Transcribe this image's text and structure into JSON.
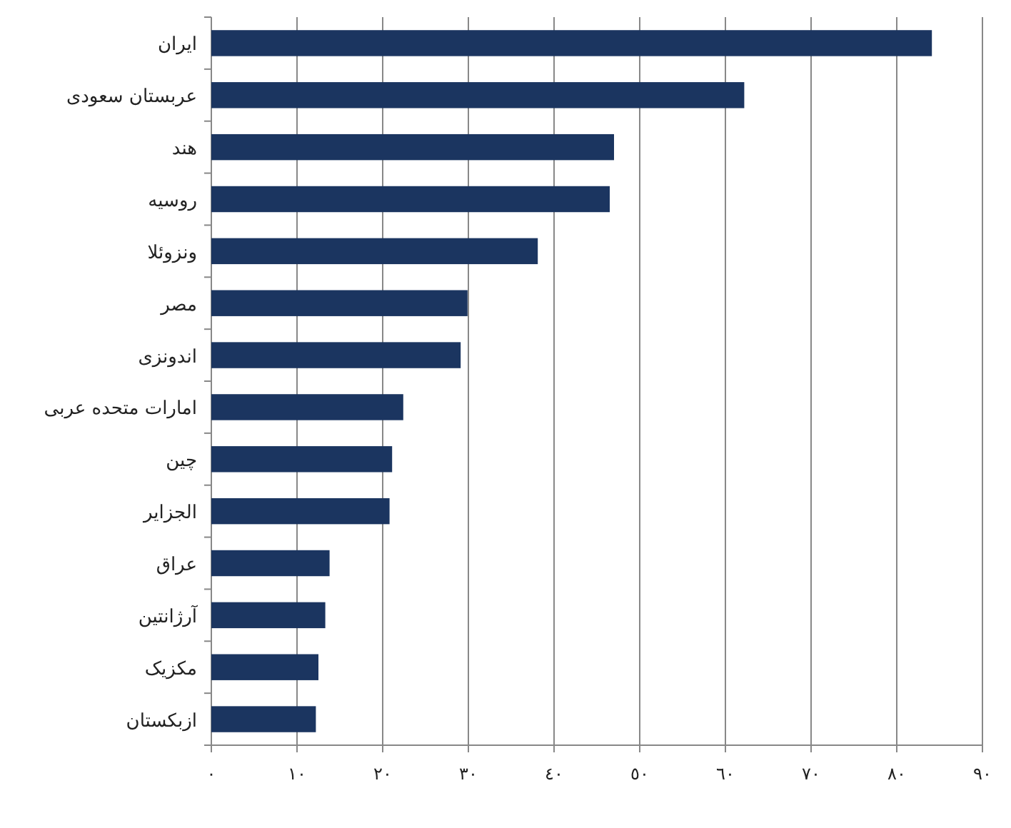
{
  "chart_data": {
    "type": "bar",
    "orientation": "horizontal",
    "categories": [
      "ایران",
      "عربستان سعودی",
      "هند",
      "روسیه",
      "ونزوئلا",
      "مصر",
      "اندونزی",
      "امارات متحده عربی",
      "چین",
      "الجزایر",
      "عراق",
      "آرژانتین",
      "مکزیک",
      "ازبکستان"
    ],
    "values": [
      84.1,
      62.2,
      47.0,
      46.5,
      38.1,
      29.9,
      29.1,
      22.4,
      21.1,
      20.8,
      13.8,
      13.3,
      12.5,
      12.2
    ],
    "color": "#1b3560",
    "xlim": [
      0,
      90
    ],
    "xticks": [
      {
        "value": 0,
        "label": "٠"
      },
      {
        "value": 10,
        "label": "١٠"
      },
      {
        "value": 20,
        "label": "٢٠"
      },
      {
        "value": 30,
        "label": "٣٠"
      },
      {
        "value": 40,
        "label": "٤٠"
      },
      {
        "value": 50,
        "label": "٥٠"
      },
      {
        "value": 60,
        "label": "٦٠"
      },
      {
        "value": 70,
        "label": "٧٠"
      },
      {
        "value": 80,
        "label": "٨٠"
      },
      {
        "value": 90,
        "label": "٩٠"
      }
    ],
    "grid": "x"
  }
}
